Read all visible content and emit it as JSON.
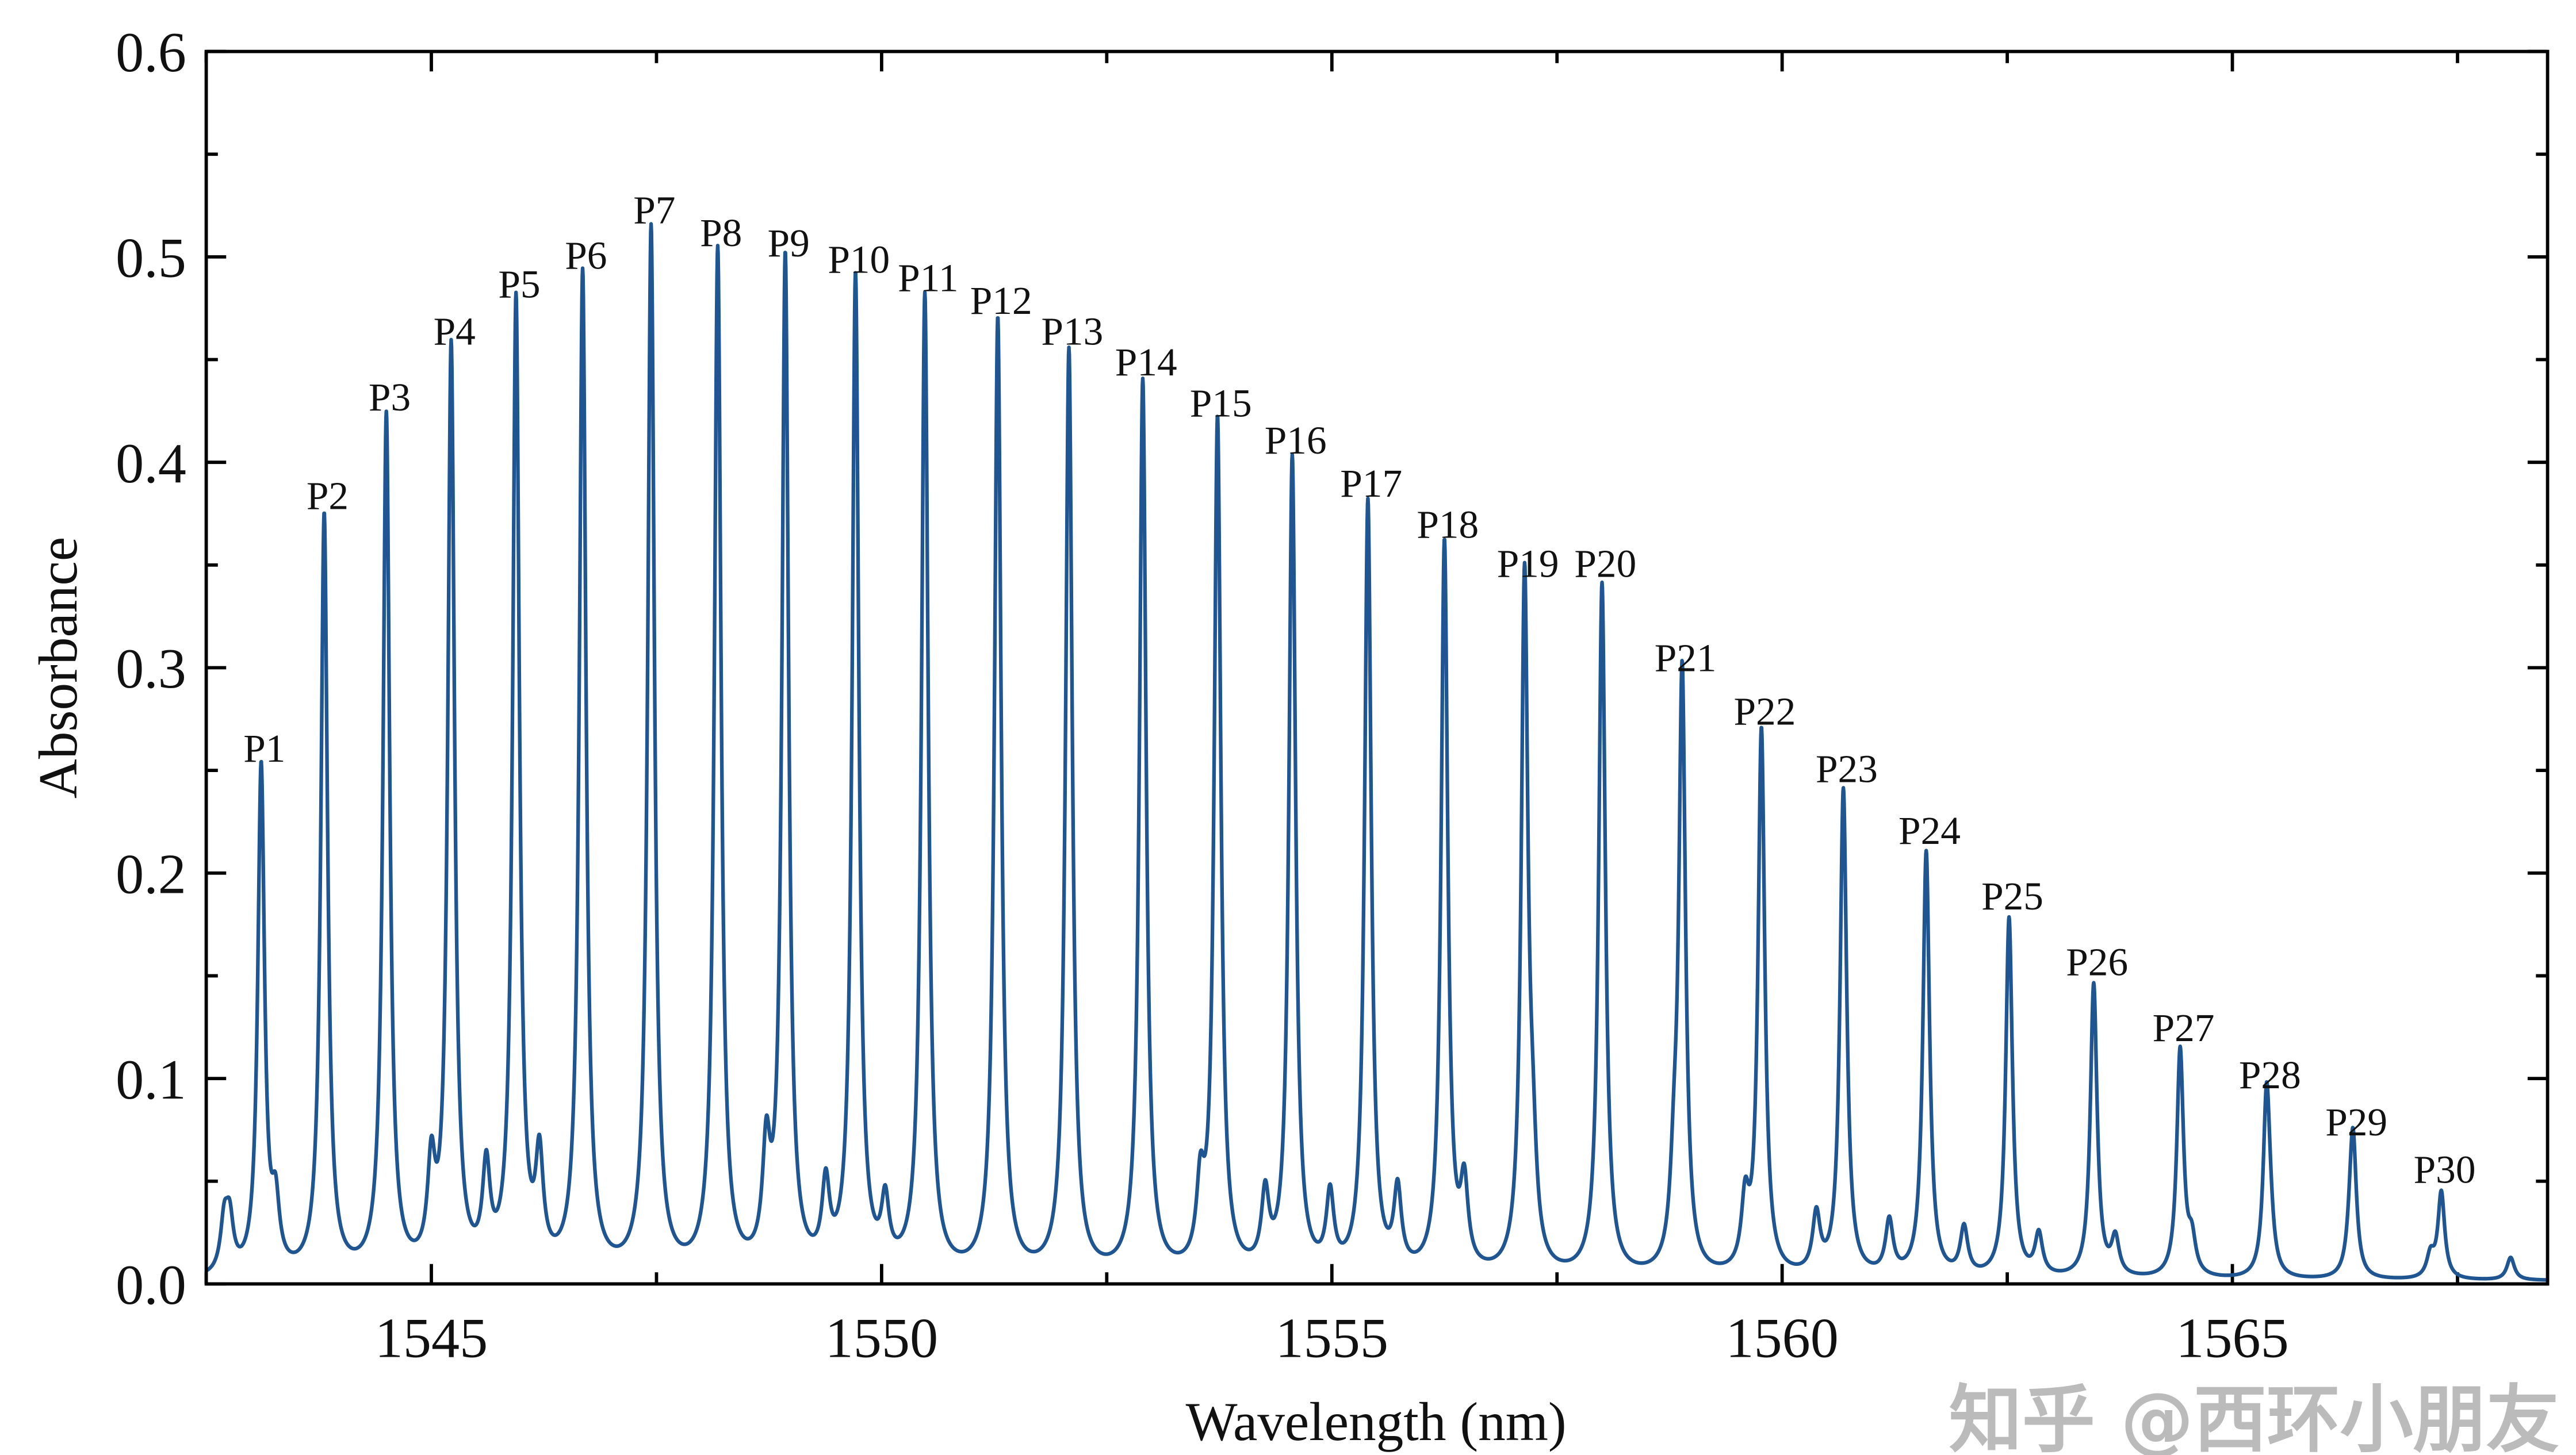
{
  "chart_data": {
    "type": "line",
    "title": "",
    "xlabel": "Wavelength (nm)",
    "ylabel": "Absorbance",
    "xlim": [
      1542.5,
      1568.5
    ],
    "ylim": [
      0.0,
      0.6
    ],
    "x_ticks": [
      1545,
      1550,
      1555,
      1560,
      1565
    ],
    "x_tick_labels": [
      "1545",
      "1550",
      "1555",
      "1560",
      "1565"
    ],
    "y_ticks": [
      0.0,
      0.1,
      0.2,
      0.3,
      0.4,
      0.5,
      0.6
    ],
    "y_tick_labels": [
      "0.0",
      "0.1",
      "0.2",
      "0.3",
      "0.4",
      "0.5",
      "0.6"
    ],
    "grid": false,
    "line_color": "#1f5591",
    "peaks": [
      {
        "label": "P1",
        "x": 1543.11,
        "y": 0.247
      },
      {
        "label": "P2",
        "x": 1543.81,
        "y": 0.37
      },
      {
        "label": "P3",
        "x": 1544.5,
        "y": 0.418
      },
      {
        "label": "P4",
        "x": 1545.22,
        "y": 0.45
      },
      {
        "label": "P5",
        "x": 1545.94,
        "y": 0.473
      },
      {
        "label": "P6",
        "x": 1546.68,
        "y": 0.487
      },
      {
        "label": "P7",
        "x": 1547.44,
        "y": 0.509
      },
      {
        "label": "P8",
        "x": 1548.18,
        "y": 0.498
      },
      {
        "label": "P9",
        "x": 1548.93,
        "y": 0.493
      },
      {
        "label": "P10",
        "x": 1549.71,
        "y": 0.485
      },
      {
        "label": "P11",
        "x": 1550.48,
        "y": 0.476
      },
      {
        "label": "P12",
        "x": 1551.29,
        "y": 0.465
      },
      {
        "label": "P13",
        "x": 1552.08,
        "y": 0.45
      },
      {
        "label": "P14",
        "x": 1552.9,
        "y": 0.435
      },
      {
        "label": "P15",
        "x": 1553.73,
        "y": 0.415
      },
      {
        "label": "P16",
        "x": 1554.56,
        "y": 0.397
      },
      {
        "label": "P17",
        "x": 1555.4,
        "y": 0.376
      },
      {
        "label": "P18",
        "x": 1556.25,
        "y": 0.356
      },
      {
        "label": "P19",
        "x": 1557.14,
        "y": 0.337
      },
      {
        "label": "P20",
        "x": 1558.0,
        "y": 0.337
      },
      {
        "label": "P21",
        "x": 1558.89,
        "y": 0.291
      },
      {
        "label": "P22",
        "x": 1559.77,
        "y": 0.265
      },
      {
        "label": "P23",
        "x": 1560.68,
        "y": 0.237
      },
      {
        "label": "P24",
        "x": 1561.6,
        "y": 0.207
      },
      {
        "label": "P25",
        "x": 1562.52,
        "y": 0.175
      },
      {
        "label": "P26",
        "x": 1563.46,
        "y": 0.143
      },
      {
        "label": "P27",
        "x": 1564.42,
        "y": 0.111
      },
      {
        "label": "P28",
        "x": 1565.38,
        "y": 0.088
      },
      {
        "label": "P29",
        "x": 1566.34,
        "y": 0.065
      },
      {
        "label": "P30",
        "x": 1567.32,
        "y": 0.042
      }
    ],
    "minor_peaks": [
      {
        "x": 1542.7,
        "y": 0.024
      },
      {
        "x": 1542.76,
        "y": 0.024
      },
      {
        "x": 1543.27,
        "y": 0.03
      },
      {
        "x": 1545.0,
        "y": 0.046
      },
      {
        "x": 1545.61,
        "y": 0.046
      },
      {
        "x": 1546.2,
        "y": 0.05
      },
      {
        "x": 1548.72,
        "y": 0.052
      },
      {
        "x": 1549.38,
        "y": 0.038
      },
      {
        "x": 1550.04,
        "y": 0.03
      },
      {
        "x": 1553.54,
        "y": 0.036
      },
      {
        "x": 1554.26,
        "y": 0.035
      },
      {
        "x": 1554.98,
        "y": 0.036
      },
      {
        "x": 1555.73,
        "y": 0.038
      },
      {
        "x": 1556.47,
        "y": 0.039
      },
      {
        "x": 1557.23,
        "y": 0.04
      },
      {
        "x": 1558.8,
        "y": 0.036
      },
      {
        "x": 1559.59,
        "y": 0.032
      },
      {
        "x": 1560.38,
        "y": 0.028
      },
      {
        "x": 1561.19,
        "y": 0.026
      },
      {
        "x": 1562.02,
        "y": 0.023
      },
      {
        "x": 1562.85,
        "y": 0.02
      },
      {
        "x": 1563.7,
        "y": 0.018
      },
      {
        "x": 1564.55,
        "y": 0.016
      },
      {
        "x": 1565.42,
        "y": 0.013
      },
      {
        "x": 1566.31,
        "y": 0.012
      },
      {
        "x": 1567.2,
        "y": 0.011
      },
      {
        "x": 1568.09,
        "y": 0.011
      }
    ]
  },
  "watermark": "知乎 @西环小朋友"
}
